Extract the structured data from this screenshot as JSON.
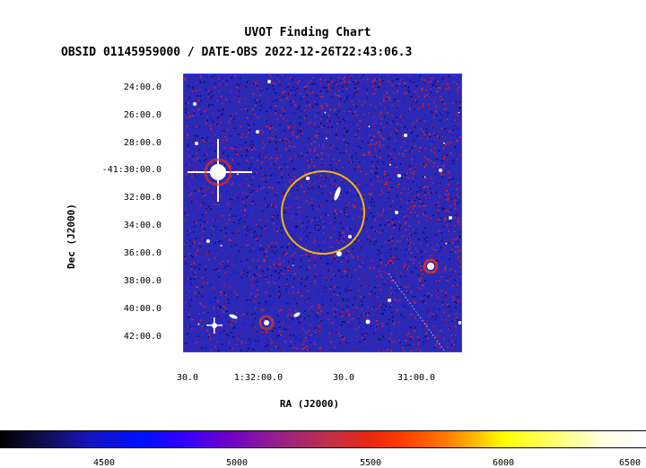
{
  "title": "UVOT Finding Chart",
  "subtitle": "OBSID 01145959000 / DATE-OBS 2022-12-26T22:43:06.3",
  "axes": {
    "xlabel": "RA (J2000)",
    "ylabel": "Dec (J2000)",
    "x_ticks": [
      "30.0",
      "1:32:00.0",
      "30.0",
      "31:00.0"
    ],
    "y_ticks": [
      "24:00.0",
      "26:00.0",
      "28:00.0",
      "-41:30:00.0",
      "32:00.0",
      "34:00.0",
      "36:00.0",
      "38:00.0",
      "40:00.0",
      "42:00.0"
    ]
  },
  "colorbar": {
    "ticks": [
      "4500",
      "5000",
      "5500",
      "6000",
      "6500"
    ],
    "colormap": [
      "#000000",
      "#0000ff",
      "#a01070",
      "#ff3000",
      "#ffff00",
      "#ffffff"
    ]
  },
  "image": {
    "background": "#2a2ab4",
    "noise_colors": [
      "#0a0a70",
      "#1c1cd0",
      "#3020ff",
      "#7a10a0",
      "#c0204a",
      "#ff2000",
      "#ffffff"
    ],
    "source_region_color": "#ffb400"
  }
}
